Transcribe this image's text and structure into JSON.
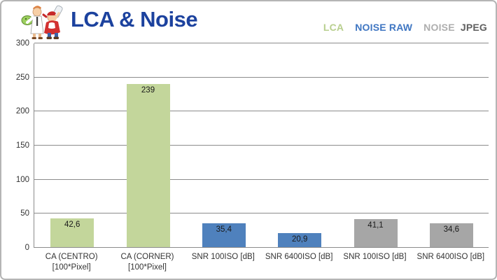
{
  "header": {
    "title": "LCA & Noise",
    "title_color": "#1c429e",
    "mascot_icon": "cartoon-testers-mascot"
  },
  "legend": {
    "lca_label": "LCA",
    "noise_raw_label": "NOISE RAW",
    "noise_jpeg_word1": "NOISE",
    "noise_jpeg_word2": "JPEG",
    "colors": {
      "lca_text": "#b8cf8e",
      "noise_raw_text": "#3f76c2",
      "noise_jpeg_word1_text": "#aeaeae",
      "noise_jpeg_word2_text": "#5f5f5f"
    }
  },
  "chart_data": {
    "type": "bar",
    "title": "LCA & Noise",
    "categories": [
      "CA (CENTRO) [100*Pixel]",
      "CA (CORNER) [100*Pixel]",
      "SNR 100ISO [dB]",
      "SNR 6400ISO [dB]",
      "SNR 100ISO [dB]",
      "SNR 6400ISO [dB]"
    ],
    "category_lines": [
      [
        "CA (CENTRO)",
        "[100*Pixel]"
      ],
      [
        "CA (CORNER)",
        "[100*Pixel]"
      ],
      [
        "SNR 100ISO [dB]"
      ],
      [
        "SNR 6400ISO [dB]"
      ],
      [
        "SNR 100ISO [dB]"
      ],
      [
        "SNR 6400ISO [dB]"
      ]
    ],
    "values": [
      42.6,
      239,
      35.4,
      20.9,
      41.1,
      34.6
    ],
    "value_labels": [
      "42,6",
      "239",
      "35,4",
      "20,9",
      "41,1",
      "34,6"
    ],
    "bar_colors": [
      "#c3d69b",
      "#c3d69b",
      "#4f81bd",
      "#4f81bd",
      "#a6a6a6",
      "#a6a6a6"
    ],
    "series_groups": [
      {
        "name": "LCA",
        "color": "#c3d69b",
        "category_indices": [
          0,
          1
        ]
      },
      {
        "name": "NOISE RAW",
        "color": "#4f81bd",
        "category_indices": [
          2,
          3
        ]
      },
      {
        "name": "NOISE JPEG",
        "color": "#a6a6a6",
        "category_indices": [
          4,
          5
        ]
      }
    ],
    "xlabel": "",
    "ylabel": "",
    "ylim": [
      0,
      300
    ],
    "yticks": [
      0,
      50,
      100,
      150,
      200,
      250,
      300
    ],
    "grid": true,
    "gridline_color": "#8c8c8c",
    "legend_position": "top-right"
  }
}
